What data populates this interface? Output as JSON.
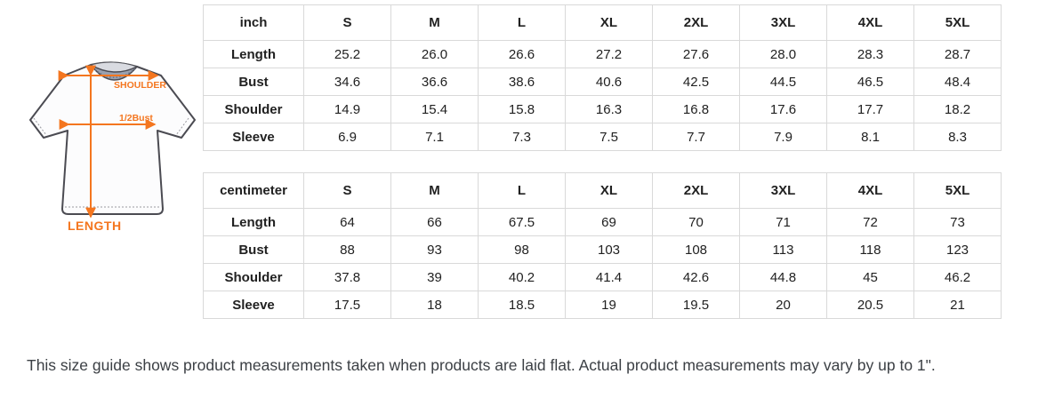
{
  "diagram": {
    "labels": {
      "shoulder": "SHOULDER",
      "half_bust": "1/2Bust",
      "length": "LENGTH"
    },
    "accent_color": "#F4761F",
    "collar_color": "#9BA1AF",
    "outline_color": "#4b4b52"
  },
  "tables": [
    {
      "unit_header": "inch",
      "size_headers": [
        "S",
        "M",
        "L",
        "XL",
        "2XL",
        "3XL",
        "4XL",
        "5XL"
      ],
      "rows": [
        {
          "label": "Length",
          "values": [
            "25.2",
            "26.0",
            "26.6",
            "27.2",
            "27.6",
            "28.0",
            "28.3",
            "28.7"
          ]
        },
        {
          "label": "Bust",
          "values": [
            "34.6",
            "36.6",
            "38.6",
            "40.6",
            "42.5",
            "44.5",
            "46.5",
            "48.4"
          ]
        },
        {
          "label": "Shoulder",
          "values": [
            "14.9",
            "15.4",
            "15.8",
            "16.3",
            "16.8",
            "17.6",
            "17.7",
            "18.2"
          ]
        },
        {
          "label": "Sleeve",
          "values": [
            "6.9",
            "7.1",
            "7.3",
            "7.5",
            "7.7",
            "7.9",
            "8.1",
            "8.3"
          ]
        }
      ]
    },
    {
      "unit_header": "centimeter",
      "size_headers": [
        "S",
        "M",
        "L",
        "XL",
        "2XL",
        "3XL",
        "4XL",
        "5XL"
      ],
      "rows": [
        {
          "label": "Length",
          "values": [
            "64",
            "66",
            "67.5",
            "69",
            "70",
            "71",
            "72",
            "73"
          ]
        },
        {
          "label": "Bust",
          "values": [
            "88",
            "93",
            "98",
            "103",
            "108",
            "113",
            "118",
            "123"
          ]
        },
        {
          "label": "Shoulder",
          "values": [
            "37.8",
            "39",
            "40.2",
            "41.4",
            "42.6",
            "44.8",
            "45",
            "46.2"
          ]
        },
        {
          "label": "Sleeve",
          "values": [
            "17.5",
            "18",
            "18.5",
            "19",
            "19.5",
            "20",
            "20.5",
            "21"
          ]
        }
      ]
    }
  ],
  "note": "This size guide shows product measurements taken when products are laid flat. Actual product measurements may vary by up to 1\"."
}
